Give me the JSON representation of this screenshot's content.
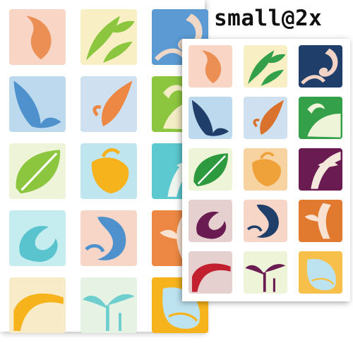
{
  "caption": "small@2x",
  "sheets": [
    {
      "id": "back",
      "tiles": [
        {
          "name": "tile-orange-leaf",
          "bg": "#f9d5c6",
          "fg": "#eb8f55",
          "motif": "leaf-drop"
        },
        {
          "name": "tile-green-vine",
          "bg": "#f8efc4",
          "fg": "#8cc63f",
          "motif": "vine"
        },
        {
          "name": "tile-blue-curl",
          "bg": "#5b9ad3",
          "fg": "#f0d8c8",
          "motif": "curl"
        },
        {
          "name": "tile-blue-wing",
          "bg": "#bcd9ee",
          "fg": "#4e91cc",
          "motif": "wing"
        },
        {
          "name": "tile-orange-wing",
          "bg": "#cfe0f0",
          "fg": "#ec8843",
          "motif": "wing-alt"
        },
        {
          "name": "tile-green-lime",
          "bg": "#8cc63f",
          "fg": "#f3edc5",
          "motif": "curl-soft"
        },
        {
          "name": "tile-green-leaf",
          "bg": "#eef4d8",
          "fg": "#8cc63f",
          "motif": "leaf-split"
        },
        {
          "name": "tile-yellow-bud",
          "bg": "#bfe5ef",
          "fg": "#f6b31b",
          "motif": "bud"
        },
        {
          "name": "tile-teal-curl",
          "bg": "#5bc9cf",
          "fg": "#eef4ee",
          "motif": "sweep"
        },
        {
          "name": "tile-cyan-swirl",
          "bg": "#c5ecee",
          "fg": "#59c4ce",
          "motif": "swirl"
        },
        {
          "name": "tile-blue-loop",
          "bg": "#f7d6c7",
          "fg": "#4e91cc",
          "motif": "loop"
        },
        {
          "name": "tile-orange-fern",
          "bg": "#ec8843",
          "fg": "#f9e2d2",
          "motif": "fern"
        },
        {
          "name": "tile-yellow-arch",
          "bg": "#f8ecc8",
          "fg": "#f6b31b",
          "motif": "arch"
        },
        {
          "name": "tile-teal-sprout",
          "bg": "#e5f2e4",
          "fg": "#6fcfcf",
          "motif": "sprout"
        },
        {
          "name": "tile-yellow-drop",
          "bg": "#f6b31b",
          "fg": "#bde3f0",
          "motif": "drop"
        }
      ]
    },
    {
      "id": "front",
      "tiles": [
        {
          "name": "tile-orange-leaf",
          "bg": "#f9d5c6",
          "fg": "#eb8f55",
          "motif": "leaf-drop"
        },
        {
          "name": "tile-green-vine",
          "bg": "#f8efc4",
          "fg": "#34a04a",
          "motif": "vine"
        },
        {
          "name": "tile-navy-curl",
          "bg": "#1f3f6a",
          "fg": "#f3d3c5",
          "motif": "curl"
        },
        {
          "name": "tile-navy-wing",
          "bg": "#bcd9ee",
          "fg": "#1f3f6a",
          "motif": "wing"
        },
        {
          "name": "tile-orange-wing",
          "bg": "#cfe0f0",
          "fg": "#d9722c",
          "motif": "wing-alt"
        },
        {
          "name": "tile-green-dark",
          "bg": "#34a04a",
          "fg": "#eef4d8",
          "motif": "curl-soft"
        },
        {
          "name": "tile-green-leaf",
          "bg": "#eef4d8",
          "fg": "#2e9a40",
          "motif": "leaf-split"
        },
        {
          "name": "tile-orange-bud",
          "bg": "#f8d3a2",
          "fg": "#f0a23a",
          "motif": "bud"
        },
        {
          "name": "tile-purple-curl",
          "bg": "#6a1c52",
          "fg": "#f3e8dc",
          "motif": "sweep"
        },
        {
          "name": "tile-plum-swirl",
          "bg": "#e6cfcf",
          "fg": "#6a1c52",
          "motif": "swirl"
        },
        {
          "name": "tile-navy-loop",
          "bg": "#f7d6c7",
          "fg": "#1f3f6a",
          "motif": "loop"
        },
        {
          "name": "tile-orange-fern",
          "bg": "#e17a2e",
          "fg": "#f9e2d2",
          "motif": "fern"
        },
        {
          "name": "tile-red-arch",
          "bg": "#e6cfcf",
          "fg": "#c21f2f",
          "motif": "arch"
        },
        {
          "name": "tile-plum-sprout",
          "bg": "#eef4d8",
          "fg": "#6a1c52",
          "motif": "sprout"
        },
        {
          "name": "tile-gold-drop",
          "bg": "#f6c04a",
          "fg": "#bde3f0",
          "motif": "drop"
        }
      ]
    }
  ]
}
